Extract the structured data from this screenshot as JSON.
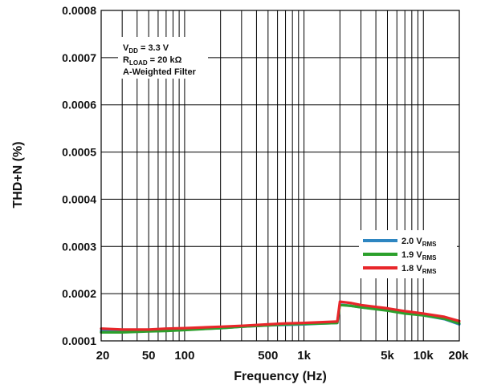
{
  "chart_data": {
    "type": "line",
    "title": "",
    "xlabel": "Frequency (Hz)",
    "ylabel": "THD+N (%)",
    "x_scale": "log",
    "xlim": [
      20,
      20000
    ],
    "ylim": [
      0.0001,
      0.0008
    ],
    "grid": true,
    "y_ticks": [
      "0.0008",
      "0.0007",
      "0.0006",
      "0.0005",
      "0.0004",
      "0.0003",
      "0.0002",
      "0.0001"
    ],
    "x_ticks": [
      {
        "value": 20,
        "label": "20"
      },
      {
        "value": 50,
        "label": "50"
      },
      {
        "value": 100,
        "label": "100"
      },
      {
        "value": 500,
        "label": "500"
      },
      {
        "value": 1000,
        "label": "1k"
      },
      {
        "value": 5000,
        "label": "5k"
      },
      {
        "value": 10000,
        "label": "10k"
      },
      {
        "value": 20000,
        "label": "20k"
      }
    ],
    "annotation": {
      "line1": {
        "main": "V",
        "sub": "DD",
        "rest": " = 3.3 V"
      },
      "line2": {
        "main": "R",
        "sub": "LOAD",
        "rest": " = 20 kΩ"
      },
      "line3": "A-Weighted Filter"
    },
    "legend_position": "right",
    "x": [
      20,
      30,
      50,
      70,
      100,
      200,
      300,
      500,
      700,
      1000,
      1500,
      1900,
      2000,
      2500,
      3000,
      5000,
      7000,
      10000,
      15000,
      20000
    ],
    "series": [
      {
        "name": "2.0 V",
        "name_sub": "RMS",
        "color": "#2e86c1",
        "values": [
          0.000121,
          0.00012,
          0.000121,
          0.000122,
          0.000124,
          0.000127,
          0.00013,
          0.000133,
          0.000134,
          0.000135,
          0.000137,
          0.000138,
          0.000177,
          0.000174,
          0.000171,
          0.000165,
          0.000159,
          0.000154,
          0.000146,
          0.000135
        ]
      },
      {
        "name": "1.9 V",
        "name_sub": "RMS",
        "color": "#2ca02c",
        "values": [
          0.000118,
          0.000118,
          0.00012,
          0.000121,
          0.000123,
          0.000127,
          0.00013,
          0.000133,
          0.000135,
          0.000136,
          0.000137,
          0.000138,
          0.000176,
          0.000174,
          0.000171,
          0.000164,
          0.000158,
          0.000154,
          0.000147,
          0.000137
        ]
      },
      {
        "name": "1.8 V",
        "name_sub": "RMS",
        "color": "#e8262a",
        "values": [
          0.000126,
          0.000124,
          0.000124,
          0.000126,
          0.000127,
          0.00013,
          0.000132,
          0.000135,
          0.000137,
          0.000138,
          0.00014,
          0.000141,
          0.000183,
          0.00018,
          0.000176,
          0.000169,
          0.000163,
          0.000158,
          0.000151,
          0.000142
        ]
      }
    ]
  }
}
